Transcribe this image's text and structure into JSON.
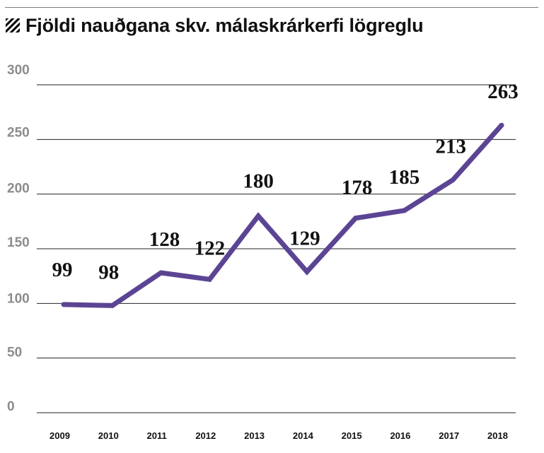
{
  "colors": {
    "line": "#5c4494",
    "grid": "#222222",
    "ytick": "#8c8c8c"
  },
  "header": {
    "title": "Fjöldi nauðgana skv. málaskrárkerfi lögreglu",
    "icon": "hatch-icon"
  },
  "chart_data": {
    "type": "line",
    "title": "Fjöldi nauðgana skv. málaskrárkerfi lögreglu",
    "xlabel": "",
    "ylabel": "",
    "x": [
      "2009",
      "2010",
      "2011",
      "2012",
      "2013",
      "2014",
      "2015",
      "2016",
      "2017",
      "2018"
    ],
    "series": [
      {
        "values": [
          99,
          98,
          128,
          122,
          180,
          129,
          178,
          185,
          213,
          263
        ]
      }
    ],
    "data_labels": [
      "99",
      "98",
      "128",
      "122",
      "180",
      "129",
      "178",
      "185",
      "213",
      "263"
    ],
    "yticks": [
      0,
      50,
      100,
      150,
      200,
      250,
      300
    ],
    "ylim": [
      0,
      300
    ],
    "grid": true,
    "legend": "none"
  }
}
